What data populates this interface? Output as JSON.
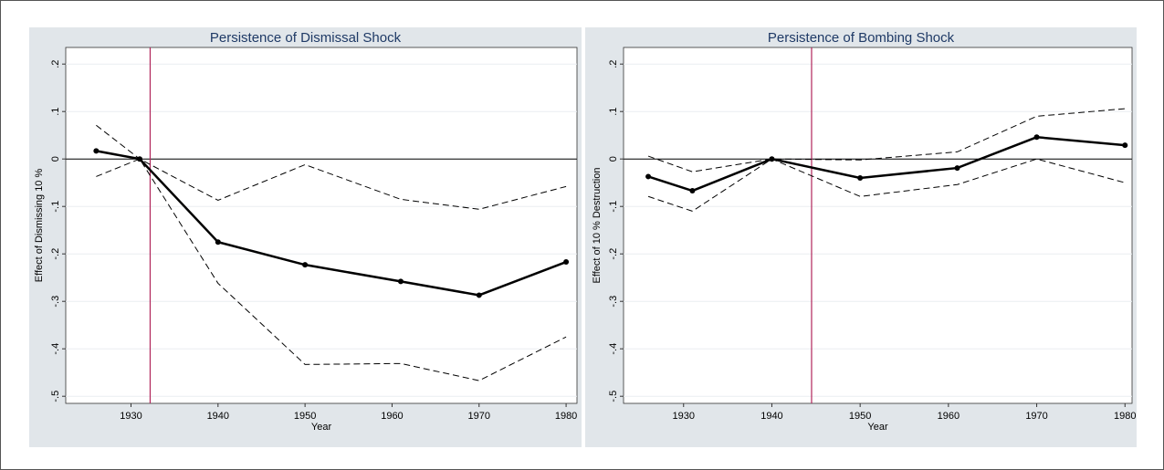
{
  "chart_data": [
    {
      "type": "line",
      "title": "Persistence of Dismissal Shock",
      "xlabel": "Year",
      "ylabel": "Effect of Dismissing 10 %",
      "x": [
        1926,
        1931,
        1940,
        1950,
        1961,
        1970,
        1980
      ],
      "series": [
        {
          "color": "#000000",
          "style": "solid",
          "markers": true,
          "values": [
            0.017,
            0,
            -0.175,
            -0.223,
            -0.258,
            -0.287,
            -0.217
          ]
        },
        {
          "color": "#000000",
          "style": "dashed",
          "markers": false,
          "values": [
            0.071,
            0,
            -0.087,
            -0.012,
            -0.085,
            -0.106,
            -0.058
          ]
        },
        {
          "color": "#000000",
          "style": "dashed",
          "markers": false,
          "values": [
            -0.037,
            0,
            -0.262,
            -0.433,
            -0.431,
            -0.467,
            -0.375
          ]
        }
      ],
      "vline": 1932.2,
      "vline_color": "#b0245a",
      "hline": 0,
      "xlim": [
        1922.5,
        1981.25
      ],
      "xticks": [
        1930,
        1940,
        1950,
        1960,
        1970,
        1980
      ],
      "ylim": [
        -0.515,
        0.235
      ],
      "yticks": [
        {
          "value": 0.2,
          "label": ".2"
        },
        {
          "value": 0.1,
          "label": ".1"
        },
        0,
        {
          "value": -0.1,
          "label": "-.1"
        },
        {
          "value": -0.2,
          "label": "-.2"
        },
        {
          "value": -0.3,
          "label": "-.3"
        },
        {
          "value": -0.4,
          "label": "-.4"
        },
        {
          "value": -0.5,
          "label": "-.5"
        }
      ],
      "grid": true
    },
    {
      "type": "line",
      "title": "Persistence of Bombing Shock",
      "xlabel": "Year",
      "ylabel": "Effect of 10 % Destruction",
      "x": [
        1926,
        1931,
        1940,
        1950,
        1961,
        1970,
        1980
      ],
      "series": [
        {
          "color": "#000000",
          "style": "solid",
          "markers": true,
          "values": [
            -0.037,
            -0.067,
            0,
            -0.04,
            -0.019,
            0.046,
            0.029
          ]
        },
        {
          "color": "#000000",
          "style": "dashed",
          "markers": false,
          "values": [
            0.006,
            -0.027,
            0,
            -0.002,
            0.015,
            0.09,
            0.106
          ]
        },
        {
          "color": "#000000",
          "style": "dashed",
          "markers": false,
          "values": [
            -0.079,
            -0.11,
            0,
            -0.079,
            -0.054,
            0,
            -0.05
          ]
        }
      ],
      "vline": 1944.5,
      "vline_color": "#b0245a",
      "hline": 0,
      "xlim": [
        1923.2,
        1980.8
      ],
      "xticks": [
        1930,
        1940,
        1950,
        1960,
        1970,
        1980
      ],
      "ylim": [
        -0.515,
        0.235
      ],
      "yticks": [
        {
          "value": 0.2,
          "label": ".2"
        },
        {
          "value": 0.1,
          "label": ".1"
        },
        0,
        {
          "value": -0.1,
          "label": "-.1"
        },
        {
          "value": -0.2,
          "label": "-.2"
        },
        {
          "value": -0.3,
          "label": "-.3"
        },
        {
          "value": -0.4,
          "label": "-.4"
        },
        {
          "value": -0.5,
          "label": "-.5"
        }
      ],
      "grid": true
    }
  ]
}
